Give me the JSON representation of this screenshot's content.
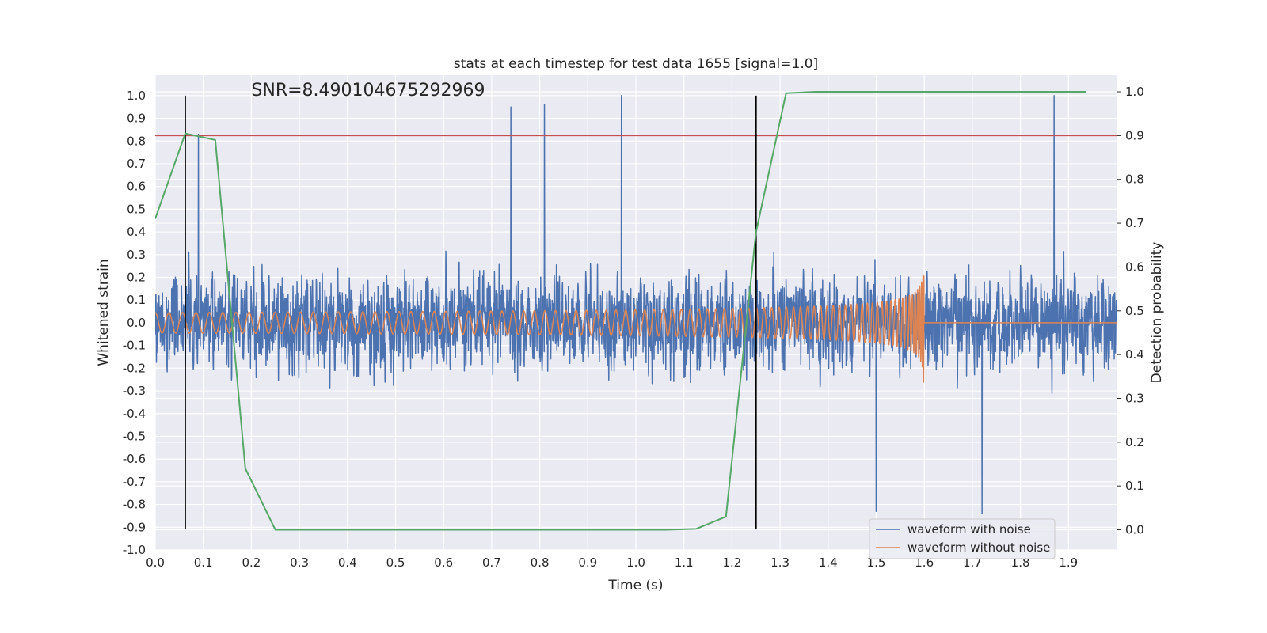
{
  "chart_data": {
    "type": "line",
    "title": "stats at each timestep for test data 1655 [signal=1.0]",
    "xlabel": "Time (s)",
    "ylabel": "Whitened strain",
    "y2label": "Detection probability",
    "xlim": [
      0,
      2.0
    ],
    "ylim": [
      -1.0,
      1.09
    ],
    "y2lim": [
      -0.046,
      1.038
    ],
    "xticks": [
      "0.0",
      "0.1",
      "0.2",
      "0.3",
      "0.4",
      "0.5",
      "0.6",
      "0.7",
      "0.8",
      "0.9",
      "1.0",
      "1.1",
      "1.2",
      "1.3",
      "1.4",
      "1.5",
      "1.6",
      "1.7",
      "1.8",
      "1.9"
    ],
    "yticks": [
      "-1.0",
      "-0.9",
      "-0.8",
      "-0.7",
      "-0.6",
      "-0.5",
      "-0.4",
      "-0.3",
      "-0.2",
      "-0.1",
      "0.0",
      "0.1",
      "0.2",
      "0.3",
      "0.4",
      "0.5",
      "0.6",
      "0.7",
      "0.8",
      "0.9",
      "1.0"
    ],
    "y2ticks": [
      "0.0",
      "0.1",
      "0.2",
      "0.3",
      "0.4",
      "0.5",
      "0.6",
      "0.7",
      "0.8",
      "0.9",
      "1.0"
    ],
    "grid": true,
    "legend_position": "lower-right",
    "annotation": "SNR=8.490104675292969",
    "series": [
      {
        "name": "waveform with noise",
        "color": "#4c72b0",
        "axis": "left",
        "style": "noise",
        "x_range": [
          0,
          2.0
        ],
        "y_range": [
          -0.99,
          1.0
        ],
        "peaks": [
          {
            "x": 0.09,
            "y": 0.83
          },
          {
            "x": 0.74,
            "y": 0.95
          },
          {
            "x": 0.81,
            "y": 0.96
          },
          {
            "x": 0.97,
            "y": 1.0
          },
          {
            "x": 1.87,
            "y": 1.0
          },
          {
            "x": 1.72,
            "y": -0.84
          },
          {
            "x": 1.5,
            "y": -0.83
          }
        ]
      },
      {
        "name": "waveform without noise",
        "color": "#dd8452",
        "axis": "left",
        "style": "chirp",
        "x_range": [
          0,
          2.0
        ],
        "merger_time": 1.6,
        "amplitude_start": 0.045,
        "amplitude_peak": 0.35,
        "frequency_start_hz": 35
      },
      {
        "color": "#55a868",
        "axis": "right",
        "style": "line",
        "x": [
          0.0,
          0.0625,
          0.125,
          0.1875,
          0.25,
          0.3125,
          0.375,
          0.4375,
          0.5,
          0.5625,
          0.625,
          0.6875,
          0.75,
          0.8125,
          0.875,
          0.9375,
          1.0,
          1.0625,
          1.125,
          1.1875,
          1.25,
          1.3125,
          1.375,
          1.4375,
          1.5,
          1.5625,
          1.625,
          1.6875,
          1.75,
          1.8125,
          1.875,
          1.9375
        ],
        "y": [
          0.71,
          0.905,
          0.89,
          0.14,
          0.0,
          0.0,
          0.0,
          0.0,
          0.0,
          0.0,
          0.0,
          0.0,
          0.0,
          0.0,
          0.0,
          0.0,
          0.0,
          0.0,
          0.002,
          0.03,
          0.68,
          0.997,
          1.0,
          1.0,
          1.0,
          1.0,
          1.0,
          1.0,
          1.0,
          1.0,
          1.0,
          1.0
        ]
      }
    ],
    "threshold": {
      "axis": "right",
      "value": 0.9,
      "color": "#c44e52"
    },
    "vertical_markers": [
      {
        "x": 0.0625,
        "y_from": -0.91,
        "y_to": 1.0,
        "color": "#000000"
      },
      {
        "x": 1.25,
        "y_from": -0.91,
        "y_to": 1.0,
        "color": "#000000"
      }
    ]
  }
}
